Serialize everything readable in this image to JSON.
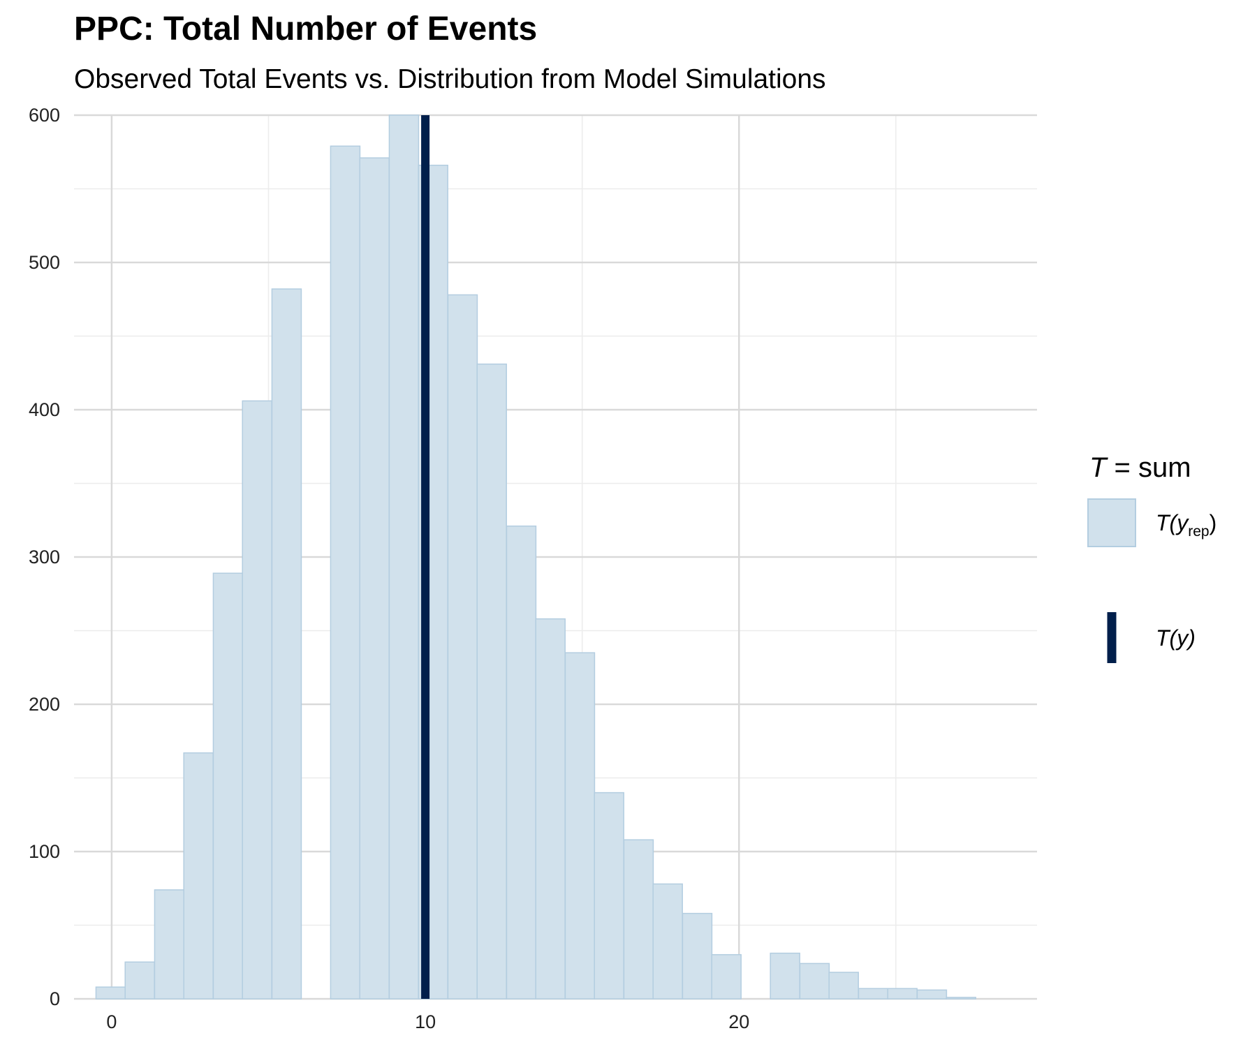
{
  "title": "PPC: Total Number of Events",
  "subtitle": "Observed Total Events vs. Distribution from Model Simulations",
  "chart_data": {
    "type": "bar",
    "title": "PPC: Total Number of Events",
    "subtitle": "Observed Total Events vs. Distribution from Model Simulations",
    "xlabel": "",
    "ylabel": "",
    "xlim": [
      -1.2,
      29.5
    ],
    "ylim": [
      0,
      600
    ],
    "x_ticks": [
      0,
      10,
      20
    ],
    "y_ticks": [
      0,
      100,
      200,
      300,
      400,
      500,
      600
    ],
    "grid": true,
    "bin_width": 0.935,
    "bins": [
      {
        "start": -0.5,
        "count": 8
      },
      {
        "start": 0.43,
        "count": 25
      },
      {
        "start": 1.37,
        "count": 74
      },
      {
        "start": 2.3,
        "count": 167
      },
      {
        "start": 3.24,
        "count": 289
      },
      {
        "start": 4.17,
        "count": 406
      },
      {
        "start": 5.11,
        "count": 482
      },
      {
        "start": 6.04,
        "count": 0
      },
      {
        "start": 6.98,
        "count": 579
      },
      {
        "start": 7.91,
        "count": 571
      },
      {
        "start": 8.85,
        "count": 600
      },
      {
        "start": 9.78,
        "count": 566
      },
      {
        "start": 10.72,
        "count": 478
      },
      {
        "start": 11.65,
        "count": 431
      },
      {
        "start": 12.59,
        "count": 321
      },
      {
        "start": 13.52,
        "count": 258
      },
      {
        "start": 14.46,
        "count": 235
      },
      {
        "start": 15.39,
        "count": 140
      },
      {
        "start": 16.33,
        "count": 108
      },
      {
        "start": 17.26,
        "count": 78
      },
      {
        "start": 18.2,
        "count": 58
      },
      {
        "start": 19.13,
        "count": 30
      },
      {
        "start": 20.07,
        "count": 0
      },
      {
        "start": 21.0,
        "count": 31
      },
      {
        "start": 21.94,
        "count": 24
      },
      {
        "start": 22.87,
        "count": 18
      },
      {
        "start": 23.81,
        "count": 7
      },
      {
        "start": 24.74,
        "count": 7
      },
      {
        "start": 25.68,
        "count": 6
      },
      {
        "start": 26.61,
        "count": 1
      }
    ],
    "observed_value": 10,
    "colors": {
      "bar_fill": "#d1e1ec",
      "bar_stroke": "#b3cde0",
      "observed_line": "#011f4b",
      "grid_major": "#d9d9d9",
      "grid_minor": "#ececec"
    },
    "legend": {
      "position": "right",
      "title_italic": "T",
      "title_rest": " = sum",
      "entries": [
        {
          "kind": "histogram",
          "main": "T(y",
          "sub": "rep",
          "close": ")"
        },
        {
          "kind": "line",
          "main": "T(y)"
        }
      ]
    }
  }
}
